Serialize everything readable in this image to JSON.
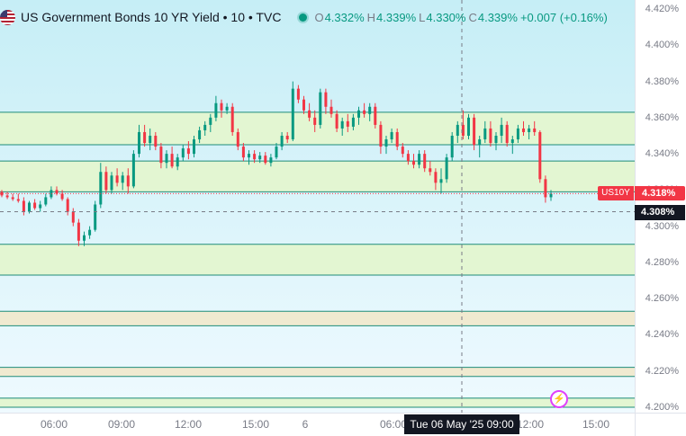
{
  "header": {
    "symbol_title": "US Government Bonds 10 YR Yield • 10 • TVC",
    "ohlc": [
      {
        "label": "O",
        "value": "4.332%"
      },
      {
        "label": "H",
        "value": "4.339%"
      },
      {
        "label": "L",
        "value": "4.330%"
      },
      {
        "label": "C",
        "value": "4.339%"
      }
    ],
    "change": "+0.007 (+0.16%)",
    "scale_mode": "%"
  },
  "tags": {
    "symbol": "US10Y",
    "last_price": "4.318%",
    "crosshair_price": "4.308%",
    "crosshair_time": "Tue 06 May '25   09:00"
  },
  "colors": {
    "up": "#089981",
    "down": "#f23645",
    "bg_top": "#c6eef6",
    "bg_bottom": "#effaff",
    "zone_fill": "#e3f6d2",
    "zone_line": "#1e8c7a",
    "zone_tan": "#f0ead0"
  },
  "chart_data": {
    "type": "candlestick",
    "title": "US Government Bonds 10 YR Yield • 10 • TVC",
    "interval": "10",
    "y_unit": "%",
    "ylim": [
      4.197,
      4.425
    ],
    "price_ticks": [
      "4.420%",
      "4.400%",
      "4.380%",
      "4.360%",
      "4.340%",
      "4.320%",
      "4.300%",
      "4.280%",
      "4.260%",
      "4.240%",
      "4.220%",
      "4.200%"
    ],
    "time_ticks": [
      "06:00",
      "09:00",
      "12:00",
      "15:00",
      "6",
      "06:00",
      "12:00",
      "15:00"
    ],
    "zones": [
      {
        "low": 4.345,
        "high": 4.363
      },
      {
        "low": 4.319,
        "high": 4.336
      },
      {
        "low": 4.273,
        "high": 4.29
      },
      {
        "low": 4.245,
        "high": 4.253
      },
      {
        "low": 4.217,
        "high": 4.222
      },
      {
        "low": 4.2,
        "high": 4.205
      }
    ],
    "last_price": 4.318,
    "crosshair_price": 4.308,
    "ohlc": [
      [
        4.319,
        4.32,
        4.316,
        4.317
      ],
      [
        4.317,
        4.319,
        4.315,
        4.316
      ],
      [
        4.316,
        4.318,
        4.314,
        4.315
      ],
      [
        4.315,
        4.318,
        4.313,
        4.314
      ],
      [
        4.314,
        4.316,
        4.306,
        4.308
      ],
      [
        4.308,
        4.314,
        4.307,
        4.313
      ],
      [
        4.313,
        4.315,
        4.309,
        4.31
      ],
      [
        4.31,
        4.314,
        4.308,
        4.312
      ],
      [
        4.312,
        4.318,
        4.311,
        4.316
      ],
      [
        4.316,
        4.322,
        4.315,
        4.32
      ],
      [
        4.32,
        4.322,
        4.317,
        4.318
      ],
      [
        4.318,
        4.32,
        4.314,
        4.315
      ],
      [
        4.315,
        4.316,
        4.306,
        4.308
      ],
      [
        4.308,
        4.31,
        4.3,
        4.302
      ],
      [
        4.302,
        4.304,
        4.289,
        4.292
      ],
      [
        4.292,
        4.297,
        4.289,
        4.295
      ],
      [
        4.295,
        4.3,
        4.293,
        4.298
      ],
      [
        4.298,
        4.314,
        4.297,
        4.312
      ],
      [
        4.312,
        4.335,
        4.31,
        4.33
      ],
      [
        4.33,
        4.333,
        4.318,
        4.32
      ],
      [
        4.32,
        4.33,
        4.318,
        4.328
      ],
      [
        4.328,
        4.332,
        4.322,
        4.324
      ],
      [
        4.324,
        4.33,
        4.32,
        4.328
      ],
      [
        4.328,
        4.332,
        4.318,
        4.322
      ],
      [
        4.322,
        4.342,
        4.321,
        4.34
      ],
      [
        4.34,
        4.356,
        4.338,
        4.352
      ],
      [
        4.352,
        4.356,
        4.344,
        4.346
      ],
      [
        4.346,
        4.354,
        4.342,
        4.35
      ],
      [
        4.35,
        4.352,
        4.342,
        4.344
      ],
      [
        4.344,
        4.346,
        4.332,
        4.335
      ],
      [
        4.335,
        4.342,
        4.332,
        4.34
      ],
      [
        4.34,
        4.344,
        4.332,
        4.333
      ],
      [
        4.333,
        4.34,
        4.331,
        4.338
      ],
      [
        4.338,
        4.345,
        4.336,
        4.343
      ],
      [
        4.343,
        4.347,
        4.337,
        4.34
      ],
      [
        4.34,
        4.35,
        4.338,
        4.348
      ],
      [
        4.348,
        4.355,
        4.346,
        4.353
      ],
      [
        4.353,
        4.358,
        4.35,
        4.356
      ],
      [
        4.356,
        4.362,
        4.352,
        4.36
      ],
      [
        4.36,
        4.372,
        4.358,
        4.368
      ],
      [
        4.368,
        4.37,
        4.36,
        4.364
      ],
      [
        4.364,
        4.368,
        4.362,
        4.366
      ],
      [
        4.366,
        4.368,
        4.35,
        4.352
      ],
      [
        4.352,
        4.354,
        4.342,
        4.344
      ],
      [
        4.344,
        4.346,
        4.336,
        4.338
      ],
      [
        4.338,
        4.342,
        4.334,
        4.34
      ],
      [
        4.34,
        4.342,
        4.335,
        4.337
      ],
      [
        4.337,
        4.341,
        4.335,
        4.339
      ],
      [
        4.339,
        4.341,
        4.334,
        4.335
      ],
      [
        4.335,
        4.34,
        4.333,
        4.338
      ],
      [
        4.338,
        4.346,
        4.337,
        4.344
      ],
      [
        4.344,
        4.352,
        4.342,
        4.35
      ],
      [
        4.35,
        4.352,
        4.346,
        4.348
      ],
      [
        4.348,
        4.38,
        4.347,
        4.376
      ],
      [
        4.376,
        4.378,
        4.368,
        4.37
      ],
      [
        4.37,
        4.372,
        4.362,
        4.364
      ],
      [
        4.364,
        4.368,
        4.358,
        4.36
      ],
      [
        4.36,
        4.364,
        4.352,
        4.356
      ],
      [
        4.356,
        4.376,
        4.354,
        4.374
      ],
      [
        4.374,
        4.376,
        4.362,
        4.366
      ],
      [
        4.366,
        4.37,
        4.36,
        4.362
      ],
      [
        4.362,
        4.364,
        4.352,
        4.354
      ],
      [
        4.354,
        4.36,
        4.35,
        4.358
      ],
      [
        4.358,
        4.362,
        4.352,
        4.355
      ],
      [
        4.355,
        4.362,
        4.353,
        4.36
      ],
      [
        4.36,
        4.366,
        4.356,
        4.364
      ],
      [
        4.364,
        4.368,
        4.36,
        4.362
      ],
      [
        4.362,
        4.368,
        4.358,
        4.366
      ],
      [
        4.366,
        4.368,
        4.354,
        4.356
      ],
      [
        4.356,
        4.358,
        4.34,
        4.344
      ],
      [
        4.344,
        4.35,
        4.34,
        4.348
      ],
      [
        4.348,
        4.354,
        4.346,
        4.352
      ],
      [
        4.352,
        4.354,
        4.342,
        4.344
      ],
      [
        4.344,
        4.346,
        4.338,
        4.34
      ],
      [
        4.34,
        4.342,
        4.334,
        4.336
      ],
      [
        4.336,
        4.34,
        4.332,
        4.334
      ],
      [
        4.334,
        4.342,
        4.332,
        4.34
      ],
      [
        4.34,
        4.342,
        4.33,
        4.332
      ],
      [
        4.332,
        4.336,
        4.328,
        4.33
      ],
      [
        4.33,
        4.332,
        4.32,
        4.324
      ],
      [
        4.324,
        4.332,
        4.318,
        4.326
      ],
      [
        4.326,
        4.34,
        4.324,
        4.338
      ],
      [
        4.338,
        4.352,
        4.336,
        4.35
      ],
      [
        4.35,
        4.358,
        4.346,
        4.356
      ],
      [
        4.356,
        4.364,
        4.348,
        4.35
      ],
      [
        4.35,
        4.362,
        4.348,
        4.36
      ],
      [
        4.36,
        4.362,
        4.342,
        4.345
      ],
      [
        4.345,
        4.35,
        4.338,
        4.348
      ],
      [
        4.348,
        4.358,
        4.346,
        4.354
      ],
      [
        4.354,
        4.358,
        4.344,
        4.346
      ],
      [
        4.346,
        4.352,
        4.342,
        4.35
      ],
      [
        4.35,
        4.36,
        4.346,
        4.356
      ],
      [
        4.356,
        4.358,
        4.344,
        4.346
      ],
      [
        4.346,
        4.35,
        4.34,
        4.348
      ],
      [
        4.348,
        4.356,
        4.346,
        4.354
      ],
      [
        4.354,
        4.358,
        4.35,
        4.352
      ],
      [
        4.352,
        4.356,
        4.348,
        4.354
      ],
      [
        4.354,
        4.358,
        4.35,
        4.352
      ],
      [
        4.352,
        4.353,
        4.324,
        4.326
      ],
      [
        4.326,
        4.328,
        4.313,
        4.316
      ],
      [
        4.316,
        4.32,
        4.314,
        4.318
      ]
    ]
  }
}
